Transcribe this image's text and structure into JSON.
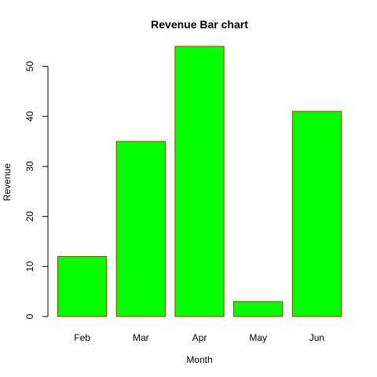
{
  "chart_data": {
    "type": "bar",
    "title": "Revenue Bar chart",
    "xlabel": "Month",
    "ylabel": "Revenue",
    "categories": [
      "Feb",
      "Mar",
      "Apr",
      "May",
      "Jun"
    ],
    "values": [
      12,
      35,
      54,
      3,
      41
    ],
    "ylim": [
      0,
      54
    ],
    "yticks": [
      0,
      10,
      20,
      30,
      40,
      50
    ],
    "grid": false,
    "legend": "none",
    "colors": {
      "bar_fill": "#00ff00",
      "bar_border": "#cc2200",
      "axis": "#000000",
      "background": "#ffffff"
    }
  }
}
